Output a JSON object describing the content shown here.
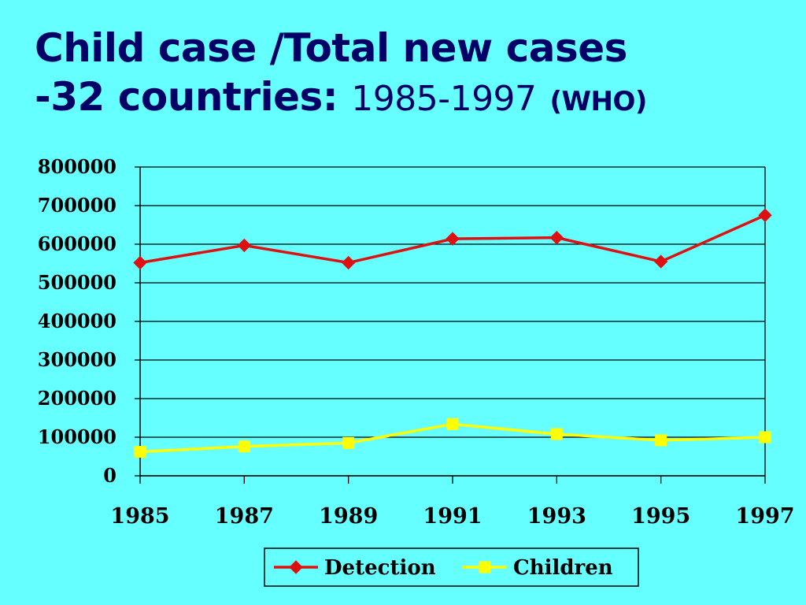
{
  "title": {
    "line1": "Child case /Total new cases",
    "line2_prefix": "-32 countries:",
    "line2_years": "1985-1997",
    "line2_source": "(WHO)"
  },
  "chart_data": {
    "type": "line",
    "title": "",
    "xlabel": "",
    "ylabel": "",
    "categories": [
      "1985",
      "1987",
      "1989",
      "1991",
      "1993",
      "1995",
      "1997"
    ],
    "ylim": [
      0,
      800000
    ],
    "yticks": [
      "0",
      "100000",
      "200000",
      "300000",
      "400000",
      "500000",
      "600000",
      "700000",
      "800000"
    ],
    "grid": true,
    "legend_position": "bottom",
    "series": [
      {
        "name": "Detection",
        "color": "#dd1111",
        "marker": "diamond",
        "values": [
          552000,
          597000,
          552000,
          614000,
          617000,
          555000,
          675000
        ]
      },
      {
        "name": "Children",
        "color": "#ffff00",
        "marker": "square",
        "values": [
          62000,
          76000,
          85000,
          134000,
          108000,
          92000,
          100000
        ]
      }
    ]
  }
}
